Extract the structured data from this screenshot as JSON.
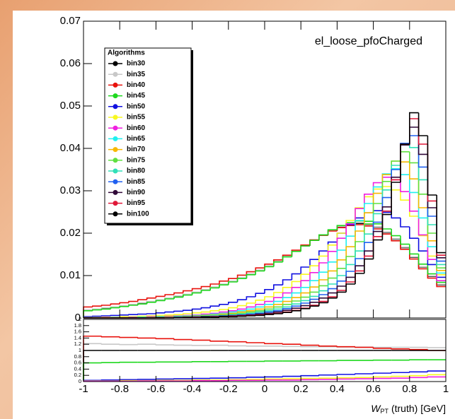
{
  "chart_data": {
    "type": "histogram",
    "title": "el_loose_pfoCharged",
    "legend_title": "Algorithms",
    "x_label": {
      "symbol": "W",
      "subscript": "PT",
      "rest": "(truth)  [GeV]"
    },
    "xlim": [
      -1,
      1
    ],
    "xticks": [
      -1,
      -0.8,
      -0.6,
      -0.4,
      -0.2,
      0,
      0.2,
      0.4,
      0.6,
      0.8,
      1
    ],
    "ylim": [
      0,
      0.07
    ],
    "yticks": [
      0,
      0.01,
      0.02,
      0.03,
      0.04,
      0.05,
      0.06,
      0.07
    ],
    "bins": [
      -1,
      -0.95,
      -0.9,
      -0.85,
      -0.8,
      -0.75,
      -0.7,
      -0.65,
      -0.6,
      -0.55,
      -0.5,
      -0.45,
      -0.4,
      -0.35,
      -0.3,
      -0.25,
      -0.2,
      -0.15,
      -0.1,
      -0.05,
      0,
      0.05,
      0.1,
      0.15,
      0.2,
      0.25,
      0.3,
      0.35,
      0.4,
      0.45,
      0.5,
      0.55,
      0.6,
      0.65,
      0.7,
      0.75,
      0.8,
      0.85,
      0.9,
      0.95,
      1
    ],
    "series": [
      {
        "name": "bin30",
        "color": "#000000",
        "values": [
          0.0018,
          0.002,
          0.0022,
          0.0025,
          0.0028,
          0.0031,
          0.0034,
          0.0038,
          0.0042,
          0.0046,
          0.005,
          0.0055,
          0.006,
          0.0066,
          0.0072,
          0.0079,
          0.0086,
          0.0094,
          0.0103,
          0.0112,
          0.0122,
          0.0133,
          0.0145,
          0.0158,
          0.017,
          0.0183,
          0.0195,
          0.0206,
          0.0215,
          0.022,
          0.0223,
          0.0221,
          0.0214,
          0.0202,
          0.0186,
          0.0166,
          0.0143,
          0.012,
          0.0098,
          0.0078
        ]
      },
      {
        "name": "bin35",
        "color": "#c8c8c8",
        "values": [
          0.0019,
          0.0021,
          0.0024,
          0.0026,
          0.0029,
          0.0032,
          0.0036,
          0.0039,
          0.0043,
          0.0047,
          0.0052,
          0.0056,
          0.0061,
          0.0067,
          0.0073,
          0.008,
          0.0087,
          0.0095,
          0.0104,
          0.0113,
          0.0123,
          0.0134,
          0.0146,
          0.0158,
          0.0171,
          0.0184,
          0.0196,
          0.0207,
          0.0216,
          0.0222,
          0.0225,
          0.0222,
          0.0215,
          0.0203,
          0.0187,
          0.0167,
          0.0144,
          0.0121,
          0.0099,
          0.0079
        ]
      },
      {
        "name": "bin40",
        "color": "#e8120c",
        "values": [
          0.0026,
          0.0028,
          0.003,
          0.0033,
          0.0036,
          0.0039,
          0.0043,
          0.0047,
          0.0051,
          0.0055,
          0.0059,
          0.0064,
          0.0069,
          0.0074,
          0.008,
          0.0087,
          0.0093,
          0.0101,
          0.0109,
          0.0118,
          0.0127,
          0.0137,
          0.0148,
          0.016,
          0.0172,
          0.0184,
          0.0195,
          0.0205,
          0.0213,
          0.0218,
          0.022,
          0.0217,
          0.021,
          0.0198,
          0.0182,
          0.0162,
          0.0139,
          0.0116,
          0.0094,
          0.0074
        ]
      },
      {
        "name": "bin45",
        "color": "#1ed81e",
        "values": [
          0.0017,
          0.0019,
          0.0021,
          0.0024,
          0.0027,
          0.003,
          0.0033,
          0.0037,
          0.0041,
          0.0045,
          0.0049,
          0.0054,
          0.0059,
          0.0065,
          0.0071,
          0.0078,
          0.0085,
          0.0093,
          0.0102,
          0.0111,
          0.0121,
          0.0132,
          0.0144,
          0.0157,
          0.017,
          0.0183,
          0.0196,
          0.0208,
          0.0218,
          0.0225,
          0.0229,
          0.0228,
          0.0222,
          0.021,
          0.0194,
          0.0174,
          0.0151,
          0.0127,
          0.0104,
          0.0084
        ]
      },
      {
        "name": "bin50",
        "color": "#1010e0",
        "values": [
          0.0003,
          0.0004,
          0.0005,
          0.0006,
          0.0007,
          0.0008,
          0.0009,
          0.001,
          0.0012,
          0.0014,
          0.0016,
          0.0018,
          0.0021,
          0.0024,
          0.0028,
          0.0032,
          0.0037,
          0.0043,
          0.005,
          0.0058,
          0.0067,
          0.0078,
          0.009,
          0.0104,
          0.012,
          0.0138,
          0.0158,
          0.0179,
          0.02,
          0.022,
          0.0236,
          0.0248,
          0.0253,
          0.0249,
          0.0236,
          0.0215,
          0.0188,
          0.0158,
          0.0126,
          0.0096
        ]
      },
      {
        "name": "bin55",
        "color": "#f8f820",
        "values": [
          0.0001,
          0.0001,
          0.0002,
          0.0002,
          0.0003,
          0.0003,
          0.0004,
          0.0005,
          0.0006,
          0.0007,
          0.0008,
          0.001,
          0.0012,
          0.0014,
          0.0017,
          0.002,
          0.0024,
          0.0029,
          0.0035,
          0.0042,
          0.005,
          0.006,
          0.0072,
          0.0086,
          0.0103,
          0.0123,
          0.0146,
          0.0172,
          0.02,
          0.023,
          0.026,
          0.0286,
          0.0304,
          0.031,
          0.0302,
          0.0278,
          0.024,
          0.0194,
          0.0146,
          0.0102
        ]
      },
      {
        "name": "bin60",
        "color": "#f020e0",
        "values": [
          0,
          0,
          0.0001,
          0.0001,
          0.0001,
          0.0002,
          0.0002,
          0.0003,
          0.0003,
          0.0004,
          0.0005,
          0.0006,
          0.0007,
          0.0009,
          0.0011,
          0.0014,
          0.0017,
          0.0021,
          0.0026,
          0.0032,
          0.0039,
          0.0048,
          0.0059,
          0.0072,
          0.0088,
          0.0107,
          0.013,
          0.0157,
          0.0188,
          0.0222,
          0.0258,
          0.0292,
          0.0319,
          0.0332,
          0.0326,
          0.0298,
          0.0252,
          0.0196,
          0.0138,
          0.0088
        ]
      },
      {
        "name": "bin65",
        "color": "#20f0f0",
        "values": [
          0,
          0,
          0,
          0.0001,
          0.0001,
          0.0001,
          0.0002,
          0.0002,
          0.0003,
          0.0003,
          0.0004,
          0.0005,
          0.0006,
          0.0007,
          0.0009,
          0.0011,
          0.0014,
          0.0017,
          0.0021,
          0.0026,
          0.0032,
          0.0039,
          0.0048,
          0.0059,
          0.0072,
          0.0088,
          0.0108,
          0.0132,
          0.016,
          0.0193,
          0.023,
          0.027,
          0.0309,
          0.034,
          0.0352,
          0.0338,
          0.0296,
          0.0236,
          0.0168,
          0.0106
        ]
      },
      {
        "name": "bin70",
        "color": "#f8b800",
        "values": [
          0,
          0,
          0,
          0,
          0.0001,
          0.0001,
          0.0001,
          0.0002,
          0.0002,
          0.0003,
          0.0003,
          0.0004,
          0.0005,
          0.0006,
          0.0007,
          0.0009,
          0.0011,
          0.0014,
          0.0017,
          0.0021,
          0.0026,
          0.0032,
          0.0039,
          0.0048,
          0.0059,
          0.0073,
          0.009,
          0.0111,
          0.0137,
          0.0168,
          0.0205,
          0.0248,
          0.0294,
          0.0338,
          0.037,
          0.0368,
          0.0328,
          0.026,
          0.0182,
          0.0112
        ]
      },
      {
        "name": "bin75",
        "color": "#60e040",
        "values": [
          0,
          0,
          0,
          0,
          0,
          0.0001,
          0.0001,
          0.0001,
          0.0002,
          0.0002,
          0.0003,
          0.0003,
          0.0004,
          0.0005,
          0.0006,
          0.0007,
          0.0009,
          0.0011,
          0.0014,
          0.0017,
          0.0021,
          0.0026,
          0.0032,
          0.004,
          0.0049,
          0.0061,
          0.0076,
          0.0094,
          0.0117,
          0.0145,
          0.018,
          0.0222,
          0.027,
          0.0322,
          0.037,
          0.0392,
          0.0366,
          0.0292,
          0.02,
          0.0118
        ]
      },
      {
        "name": "bin80",
        "color": "#30e0b8",
        "values": [
          0,
          0,
          0,
          0,
          0,
          0,
          0.0001,
          0.0001,
          0.0001,
          0.0002,
          0.0002,
          0.0003,
          0.0003,
          0.0004,
          0.0005,
          0.0006,
          0.0007,
          0.0009,
          0.0011,
          0.0014,
          0.0017,
          0.0021,
          0.0026,
          0.0033,
          0.0041,
          0.0051,
          0.0064,
          0.008,
          0.01,
          0.0126,
          0.0158,
          0.0198,
          0.0246,
          0.0302,
          0.036,
          0.0408,
          0.0402,
          0.0326,
          0.022,
          0.0126
        ]
      },
      {
        "name": "bin85",
        "color": "#2060f0",
        "values": [
          0,
          0,
          0,
          0,
          0,
          0,
          0,
          0.0001,
          0.0001,
          0.0001,
          0.0002,
          0.0002,
          0.0003,
          0.0003,
          0.0004,
          0.0005,
          0.0006,
          0.0007,
          0.0009,
          0.0011,
          0.0014,
          0.0017,
          0.0022,
          0.0028,
          0.0035,
          0.0044,
          0.0055,
          0.0069,
          0.0087,
          0.011,
          0.014,
          0.0178,
          0.0226,
          0.0284,
          0.035,
          0.0412,
          0.043,
          0.0356,
          0.024,
          0.0134
        ]
      },
      {
        "name": "bin90",
        "color": "#300838",
        "values": [
          0,
          0,
          0,
          0,
          0,
          0,
          0,
          0,
          0.0001,
          0.0001,
          0.0001,
          0.0002,
          0.0002,
          0.0003,
          0.0003,
          0.0004,
          0.0005,
          0.0006,
          0.0007,
          0.0009,
          0.0011,
          0.0014,
          0.0018,
          0.0023,
          0.0029,
          0.0037,
          0.0047,
          0.0059,
          0.0075,
          0.0096,
          0.0123,
          0.0158,
          0.0204,
          0.0262,
          0.0332,
          0.0408,
          0.045,
          0.0386,
          0.026,
          0.0142
        ]
      },
      {
        "name": "bin95",
        "color": "#e01838",
        "values": [
          0,
          0,
          0,
          0,
          0,
          0,
          0,
          0,
          0,
          0.0001,
          0.0001,
          0.0001,
          0.0002,
          0.0002,
          0.0003,
          0.0003,
          0.0004,
          0.0005,
          0.0006,
          0.0007,
          0.0009,
          0.0011,
          0.0014,
          0.0018,
          0.0023,
          0.003,
          0.0039,
          0.005,
          0.0065,
          0.0085,
          0.0111,
          0.0146,
          0.0192,
          0.0252,
          0.0326,
          0.041,
          0.047,
          0.041,
          0.0276,
          0.0148
        ]
      },
      {
        "name": "bin100",
        "color": "#000000",
        "values": [
          0,
          0,
          0,
          0,
          0,
          0,
          0,
          0,
          0,
          0,
          0.0001,
          0.0001,
          0.0001,
          0.0002,
          0.0002,
          0.0003,
          0.0003,
          0.0004,
          0.0005,
          0.0006,
          0.0008,
          0.001,
          0.0013,
          0.0017,
          0.0022,
          0.0028,
          0.0036,
          0.0047,
          0.0061,
          0.008,
          0.0105,
          0.0139,
          0.0184,
          0.0244,
          0.032,
          0.041,
          0.0484,
          0.043,
          0.029,
          0.0154
        ]
      }
    ],
    "ratio_panel": {
      "ylim": [
        0,
        2
      ],
      "yticks": [
        0,
        0.2,
        0.4,
        0.6,
        0.8,
        1,
        1.2,
        1.4,
        1.6,
        1.8,
        2
      ],
      "bins": [
        -1,
        -0.9,
        -0.8,
        -0.7,
        -0.6,
        -0.5,
        -0.4,
        -0.3,
        -0.2,
        -0.1,
        0,
        0.1,
        0.2,
        0.3,
        0.4,
        0.5,
        0.6,
        0.7,
        0.8,
        0.9,
        1
      ],
      "series": [
        {
          "color": "#c8c8c8",
          "values": [
            1.22,
            1.2,
            1.19,
            1.2,
            1.18,
            1.17,
            1.16,
            1.17,
            1.15,
            1.14,
            1.14,
            1.13,
            1.12,
            1.12,
            1.11,
            1.11,
            1.1,
            1.1,
            1.1,
            1.09
          ]
        },
        {
          "color": "#e8120c",
          "values": [
            1.46,
            1.44,
            1.42,
            1.4,
            1.38,
            1.35,
            1.33,
            1.3,
            1.28,
            1.25,
            1.22,
            1.2,
            1.17,
            1.14,
            1.12,
            1.1,
            1.07,
            1.05,
            1.03,
            1
          ]
        },
        {
          "color": "#000000",
          "values": [
            1,
            1,
            1,
            1,
            1,
            1,
            1,
            1,
            1,
            1,
            1,
            1,
            1,
            1,
            1,
            1,
            1,
            1,
            1,
            1
          ]
        },
        {
          "color": "#1ed81e",
          "values": [
            0.6,
            0.61,
            0.62,
            0.62,
            0.63,
            0.63,
            0.64,
            0.64,
            0.65,
            0.65,
            0.66,
            0.66,
            0.67,
            0.67,
            0.68,
            0.68,
            0.69,
            0.69,
            0.7,
            0.7
          ]
        },
        {
          "color": "#1010e0",
          "values": [
            0.04,
            0.05,
            0.06,
            0.07,
            0.08,
            0.09,
            0.1,
            0.11,
            0.12,
            0.14,
            0.15,
            0.17,
            0.19,
            0.21,
            0.23,
            0.25,
            0.27,
            0.29,
            0.31,
            0.34
          ]
        },
        {
          "color": "#f8f820",
          "values": [
            0.02,
            0.02,
            0.03,
            0.03,
            0.04,
            0.04,
            0.05,
            0.05,
            0.06,
            0.07,
            0.08,
            0.09,
            0.1,
            0.11,
            0.12,
            0.13,
            0.15,
            0.17,
            0.19,
            0.22
          ]
        },
        {
          "color": "#f020e0",
          "values": [
            0.01,
            0.01,
            0.01,
            0.02,
            0.02,
            0.02,
            0.03,
            0.03,
            0.04,
            0.04,
            0.05,
            0.05,
            0.06,
            0.07,
            0.08,
            0.09,
            0.1,
            0.11,
            0.13,
            0.15
          ]
        }
      ]
    }
  }
}
